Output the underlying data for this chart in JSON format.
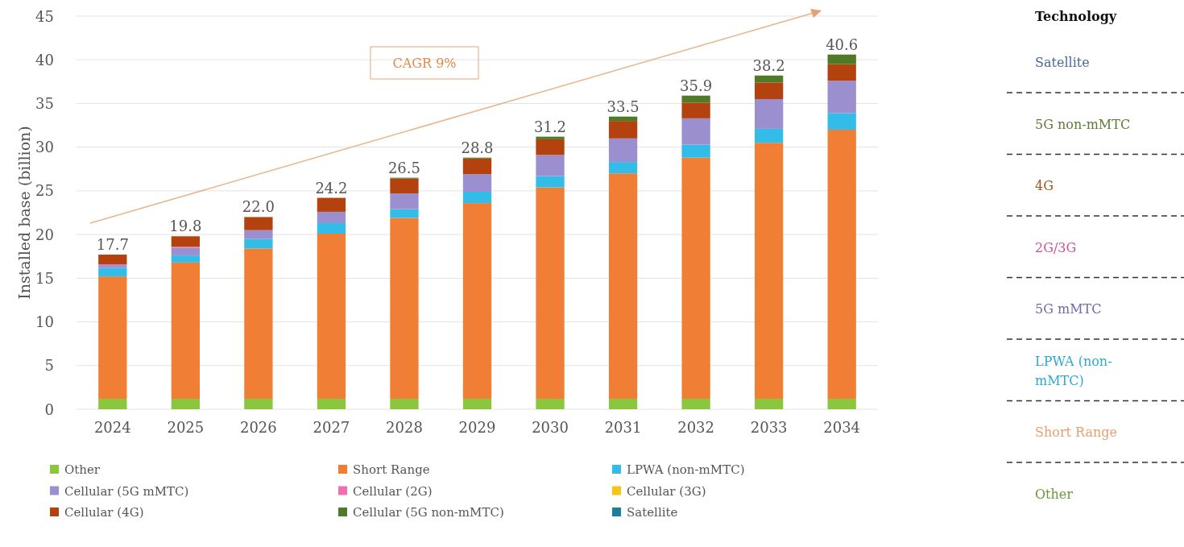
{
  "chart_data": [
    {
      "type": "bar",
      "stacked": true,
      "ylabel": "Installed base (billion)",
      "categories": [
        "2024",
        "2025",
        "2026",
        "2027",
        "2028",
        "2029",
        "2030",
        "2031",
        "2032",
        "2033",
        "2034"
      ],
      "series": [
        {
          "name": "Other",
          "color": "#8cc63f",
          "values": [
            1.2,
            1.2,
            1.2,
            1.2,
            1.2,
            1.2,
            1.2,
            1.2,
            1.2,
            1.2,
            1.2
          ]
        },
        {
          "name": "Short Range",
          "color": "#f07f35",
          "values": [
            14.0,
            15.6,
            17.2,
            18.9,
            20.7,
            22.4,
            24.2,
            25.8,
            27.6,
            29.3,
            30.8
          ]
        },
        {
          "name": "LPWA (non-mMTC)",
          "color": "#33bce8",
          "values": [
            1.0,
            0.8,
            1.1,
            1.2,
            1.0,
            1.3,
            1.3,
            1.3,
            1.5,
            1.6,
            1.9
          ]
        },
        {
          "name": "Cellular (5G mMTC)",
          "color": "#9b8fd0",
          "values": [
            0.3,
            0.9,
            1.0,
            1.3,
            1.8,
            2.0,
            2.4,
            2.7,
            3.0,
            3.4,
            3.7
          ]
        },
        {
          "name": "Cellular (2G)",
          "color": "#f06fb0",
          "values": [
            0.1,
            0.1,
            0,
            0,
            0,
            0,
            0,
            0,
            0,
            0,
            0
          ]
        },
        {
          "name": "Cellular (3G)",
          "color": "#f5c518",
          "values": [
            0,
            0,
            0,
            0,
            0,
            0,
            0,
            0,
            0,
            0,
            0
          ]
        },
        {
          "name": "Cellular (4G)",
          "color": "#b4420f",
          "values": [
            1.1,
            1.2,
            1.5,
            1.6,
            1.7,
            1.8,
            1.8,
            2.0,
            1.8,
            1.9,
            1.9
          ]
        },
        {
          "name": "Cellular (5G non-mMTC)",
          "color": "#4f7a28",
          "values": [
            0,
            0,
            0,
            0,
            0.1,
            0.1,
            0.3,
            0.5,
            0.8,
            0.8,
            1.1
          ]
        },
        {
          "name": "Satellite",
          "color": "#1b7f9e",
          "values": [
            0,
            0,
            0,
            0,
            0,
            0,
            0,
            0,
            0,
            0,
            0
          ]
        }
      ],
      "totals": [
        "17.7",
        "19.8",
        "22.0",
        "24.2",
        "26.5",
        "28.8",
        "31.2",
        "33.5",
        "35.9",
        "38.2",
        "40.6"
      ],
      "ylim": [
        0,
        45
      ],
      "yticks": [
        0,
        5,
        10,
        15,
        20,
        25,
        30,
        35,
        40,
        45
      ],
      "grid": "y",
      "legend": "bottom",
      "annotations": [
        "CAGR 9%"
      ]
    },
    {
      "type": "other",
      "title": "Technology",
      "annotations": [
        "Satellite",
        "5G non-mMTC",
        "4G",
        "2G/3G",
        "5G mMTC",
        "LPWA (non-mMTC)",
        "Short Range",
        "Other"
      ],
      "colors": [
        "#4a6a9e",
        "#5f7a3a",
        "#a0521e",
        "#d0509a",
        "#6f6aa8",
        "#2fa8d0",
        "#e8a070",
        "#6a9a40"
      ]
    }
  ]
}
